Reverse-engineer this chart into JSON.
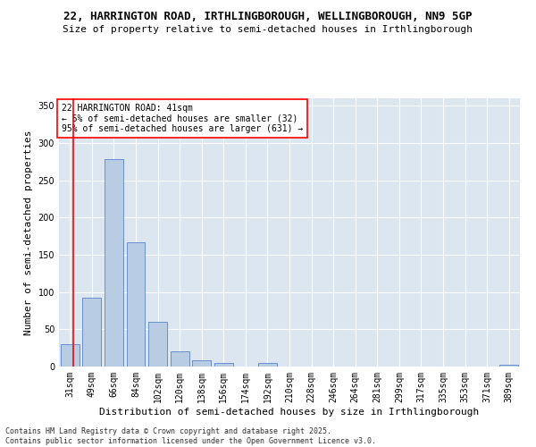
{
  "title_line1": "22, HARRINGTON ROAD, IRTHLINGBOROUGH, WELLINGBOROUGH, NN9 5GP",
  "title_line2": "Size of property relative to semi-detached houses in Irthlingborough",
  "xlabel": "Distribution of semi-detached houses by size in Irthlingborough",
  "ylabel": "Number of semi-detached properties",
  "categories": [
    "31sqm",
    "49sqm",
    "66sqm",
    "84sqm",
    "102sqm",
    "120sqm",
    "138sqm",
    "156sqm",
    "174sqm",
    "192sqm",
    "210sqm",
    "228sqm",
    "246sqm",
    "264sqm",
    "281sqm",
    "299sqm",
    "317sqm",
    "335sqm",
    "353sqm",
    "371sqm",
    "389sqm"
  ],
  "values": [
    30,
    92,
    278,
    167,
    60,
    21,
    9,
    5,
    0,
    5,
    0,
    0,
    0,
    0,
    0,
    0,
    0,
    0,
    0,
    0,
    3
  ],
  "bar_color": "#b8cce4",
  "bar_edge_color": "#4472c4",
  "vline_color": "red",
  "annotation_text": "22 HARRINGTON ROAD: 41sqm\n← 5% of semi-detached houses are smaller (32)\n95% of semi-detached houses are larger (631) →",
  "annotation_box_color": "white",
  "annotation_box_edge_color": "red",
  "ylim": [
    0,
    360
  ],
  "yticks": [
    0,
    50,
    100,
    150,
    200,
    250,
    300,
    350
  ],
  "bg_color": "#dce6f1",
  "grid_color": "white",
  "footer_text": "Contains HM Land Registry data © Crown copyright and database right 2025.\nContains public sector information licensed under the Open Government Licence v3.0.",
  "title_fontsize": 9,
  "subtitle_fontsize": 8,
  "axis_label_fontsize": 8,
  "tick_fontsize": 7,
  "annotation_fontsize": 7,
  "footer_fontsize": 6
}
